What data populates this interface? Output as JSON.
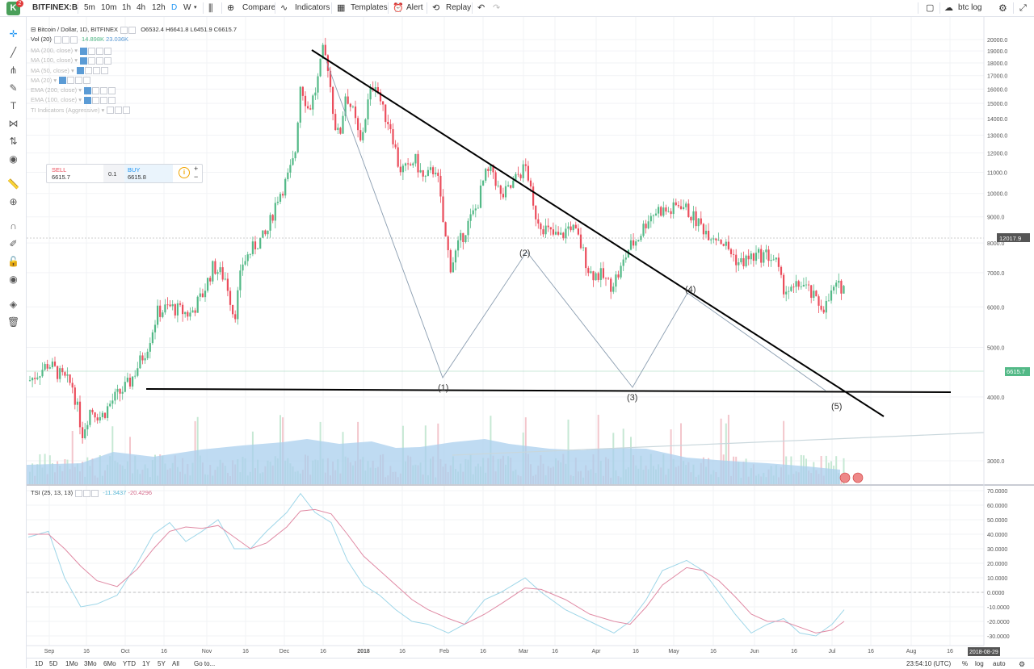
{
  "toolbar": {
    "symbol": "BITFINEX:B",
    "intervals": [
      "5m",
      "10m",
      "1h",
      "4h",
      "12h",
      "D",
      "W"
    ],
    "compare": "Compare",
    "indicators": "Indicators",
    "templates": "Templates",
    "alert": "Alert",
    "replay": "Replay",
    "layout_name": "btc log"
  },
  "logo": {
    "letter": "K",
    "badge": "2"
  },
  "legend": {
    "title": "Bitcoin / Dollar, 1D, BITFINEX",
    "open": "O6532.4",
    "high": "H6641.8",
    "low": "L6451.9",
    "close": "C6615.7",
    "vol_label": "Vol (20)",
    "vol_v1": "14.898K",
    "vol_v2": "23.036K",
    "hidden_indicators": [
      "MA (200, close)",
      "MA (100, close)",
      "MA (50, close)",
      "MA (20)",
      "EMA (200, close)",
      "EMA (100, close)",
      "TI Indicators (Aggressive)"
    ]
  },
  "trade": {
    "sell_label": "SELL",
    "sell_price": "6615.7",
    "qty": "0.1",
    "buy_label": "BUY",
    "buy_price": "6615.8",
    "plus": "+",
    "minus": "−"
  },
  "price_axis": {
    "ticks": [
      "20000.0",
      "19000.0",
      "18000.0",
      "17000.0",
      "16000.0",
      "15000.0",
      "14000.0",
      "13000.0",
      "12000.0",
      "11000.0",
      "10000.0",
      "9000.0",
      "8000.0",
      "7000.0",
      "6000.0",
      "5000.0",
      "4000.0",
      "3000.0"
    ],
    "marker_high": "12017.9",
    "marker_last": "6615.7"
  },
  "tsi": {
    "label": "TSI (25, 13, 13)",
    "v1": "-11.3437",
    "v2": "-20.4296",
    "ticks": [
      "70.0000",
      "60.0000",
      "50.0000",
      "40.0000",
      "30.0000",
      "20.0000",
      "10.0000",
      "0.0000",
      "-10.0000",
      "-20.0000",
      "-30.0000"
    ]
  },
  "time_axis": {
    "labels": [
      "Sep",
      "16",
      "Oct",
      "16",
      "Nov",
      "16",
      "Dec",
      "16",
      "2018",
      "16",
      "Feb",
      "16",
      "Mar",
      "16",
      "Apr",
      "16",
      "May",
      "16",
      "Jun",
      "16",
      "Jul",
      "16",
      "Aug",
      "16"
    ],
    "cursor_date": "2018-08-29"
  },
  "annotations": {
    "w1": "(1)",
    "w2": "(2)",
    "w3": "(3)",
    "w4": "(4)",
    "w5": "(5)"
  },
  "bottombar": {
    "ranges": [
      "1D",
      "5D",
      "1Mo",
      "3Mo",
      "6Mo",
      "YTD",
      "1Y",
      "5Y",
      "All"
    ],
    "goto": "Go to...",
    "clock": "23:54:10 (UTC)",
    "percent": "%",
    "log": "log",
    "auto": "auto"
  },
  "colors": {
    "up": "#53b987",
    "down": "#eb4d5c",
    "volume_ma": "#a9cfee",
    "tsi_line": "#9ed6e8",
    "tsi_signal": "#e08aa4",
    "trendline": "#000000"
  }
}
